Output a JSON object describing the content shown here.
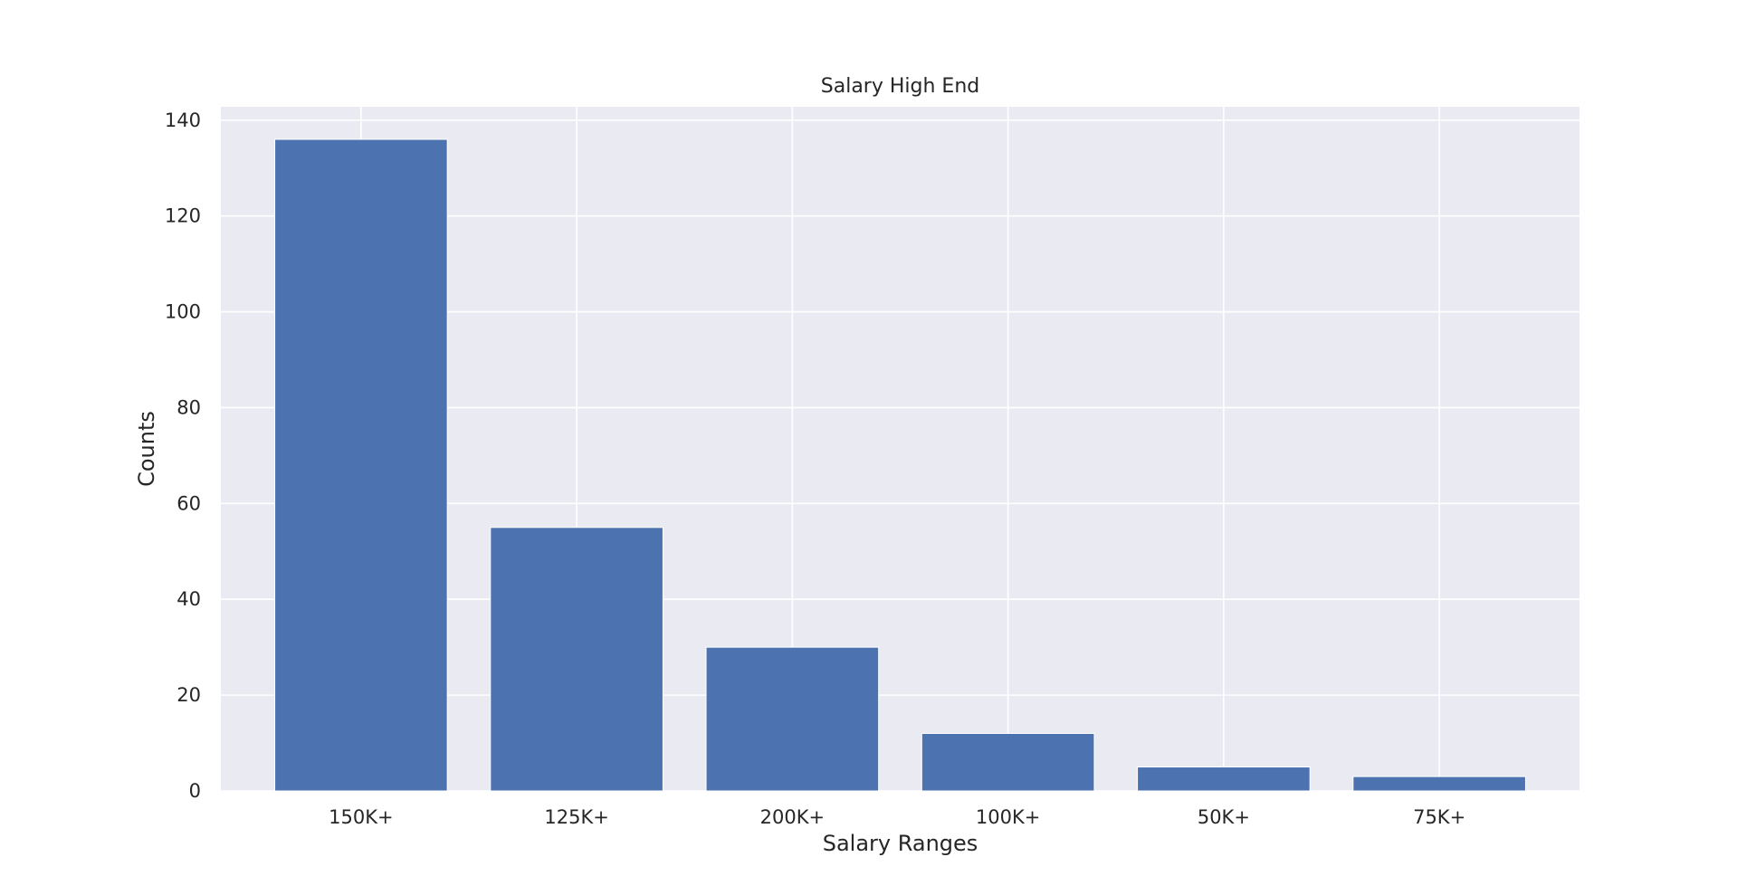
{
  "chart_data": {
    "type": "bar",
    "title": "Salary High End",
    "xlabel": "Salary Ranges",
    "ylabel": "Counts",
    "categories": [
      "150K+",
      "125K+",
      "200K+",
      "100K+",
      "50K+",
      "75K+"
    ],
    "values": [
      136,
      55,
      30,
      12,
      5,
      3
    ],
    "ylim": [
      0,
      142.8
    ],
    "yticks": [
      0,
      20,
      40,
      60,
      80,
      100,
      120,
      140
    ],
    "grid": true,
    "colors": {
      "bar": "#4c72b0",
      "background": "#eaeaf2",
      "grid": "#ffffff"
    }
  }
}
